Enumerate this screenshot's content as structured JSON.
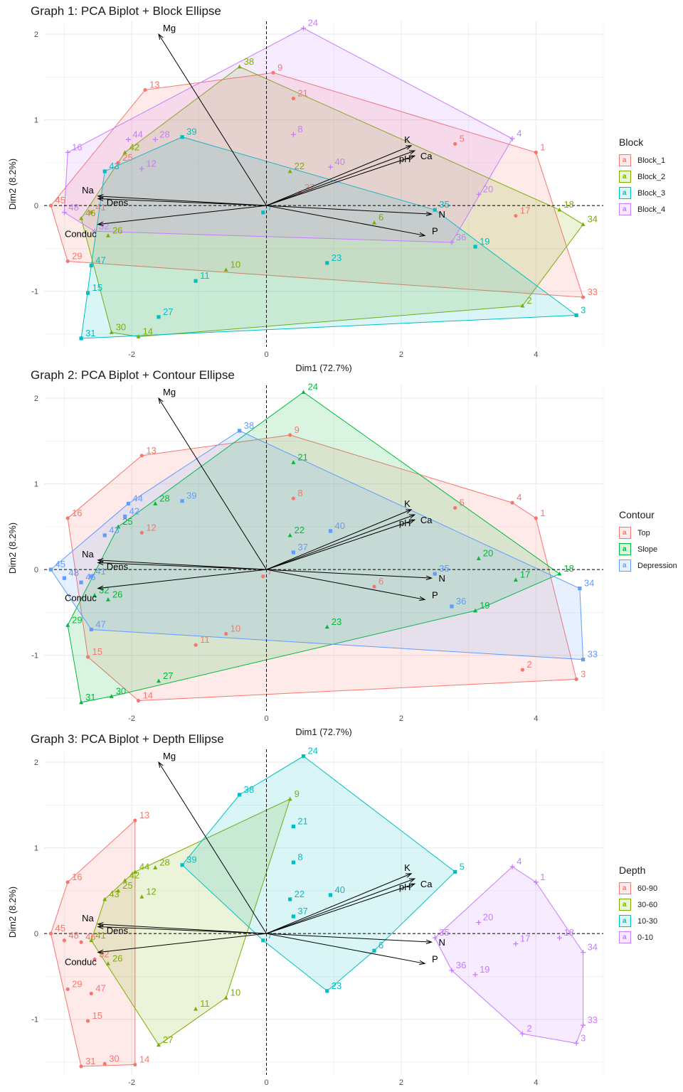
{
  "chart_data": [
    {
      "type": "scatter",
      "title": "Graph 1: PCA Biplot + Block Ellipse",
      "xlabel": "Dim1 (72.7%)",
      "ylabel": "Dim2 (8.2%)",
      "xlim": [
        -3.3,
        5.0
      ],
      "ylim": [
        -1.65,
        2.15
      ],
      "x_ticks": [
        "-2",
        "0",
        "2",
        "4"
      ],
      "y_ticks": [
        "-1",
        "0",
        "1",
        "2"
      ],
      "legend_title": "Block",
      "legend_position": "right",
      "series": [
        {
          "name": "Block_1",
          "color": "#F8766D",
          "glyph": "a",
          "points": [
            {
              "label": "1",
              "x": 4.0,
              "y": 0.62
            },
            {
              "label": "5",
              "x": 2.8,
              "y": 0.72
            },
            {
              "label": "9",
              "x": 0.1,
              "y": 1.55
            },
            {
              "label": "13",
              "x": -1.8,
              "y": 1.35
            },
            {
              "label": "17",
              "x": 3.7,
              "y": -0.12
            },
            {
              "label": "21",
              "x": 0.4,
              "y": 1.25
            },
            {
              "label": "25",
              "x": -2.2,
              "y": 0.5
            },
            {
              "label": "29",
              "x": -2.95,
              "y": -0.65
            },
            {
              "label": "33",
              "x": 4.7,
              "y": -1.07
            },
            {
              "label": "37",
              "x": 0.5,
              "y": 0.15
            },
            {
              "label": "41",
              "x": -2.6,
              "y": -0.08
            },
            {
              "label": "45",
              "x": -3.2,
              "y": 0.0
            }
          ]
        },
        {
          "name": "Block_2",
          "color": "#7CAE00",
          "glyph": "a",
          "points": [
            {
              "label": "2",
              "x": 3.8,
              "y": -1.17
            },
            {
              "label": "6",
              "x": 1.6,
              "y": -0.2
            },
            {
              "label": "10",
              "x": -0.6,
              "y": -0.75
            },
            {
              "label": "14",
              "x": -1.9,
              "y": -1.53
            },
            {
              "label": "18",
              "x": 4.35,
              "y": -0.05
            },
            {
              "label": "22",
              "x": 0.35,
              "y": 0.4
            },
            {
              "label": "26",
              "x": -2.35,
              "y": -0.35
            },
            {
              "label": "30",
              "x": -2.3,
              "y": -1.48
            },
            {
              "label": "34",
              "x": 4.7,
              "y": -0.22
            },
            {
              "label": "38",
              "x": -0.4,
              "y": 1.62
            },
            {
              "label": "42",
              "x": -2.1,
              "y": 0.62
            },
            {
              "label": "46",
              "x": -2.75,
              "y": -0.15
            }
          ]
        },
        {
          "name": "Block_3",
          "color": "#00BFC4",
          "glyph": "a",
          "points": [
            {
              "label": "3",
              "x": 4.6,
              "y": -1.28
            },
            {
              "label": "7",
              "x": -0.05,
              "y": -0.08
            },
            {
              "label": "11",
              "x": -1.05,
              "y": -0.88
            },
            {
              "label": "15",
              "x": -2.65,
              "y": -1.02
            },
            {
              "label": "19",
              "x": 3.1,
              "y": -0.48
            },
            {
              "label": "23",
              "x": 0.9,
              "y": -0.67
            },
            {
              "label": "27",
              "x": -1.6,
              "y": -1.3
            },
            {
              "label": "31",
              "x": -2.75,
              "y": -1.55
            },
            {
              "label": "35",
              "x": 2.5,
              "y": -0.05
            },
            {
              "label": "39",
              "x": -1.25,
              "y": 0.8
            },
            {
              "label": "43",
              "x": -2.4,
              "y": 0.4
            },
            {
              "label": "47",
              "x": -2.6,
              "y": -0.7
            }
          ]
        },
        {
          "name": "Block_4",
          "color": "#C77CFF",
          "glyph": "a",
          "points": [
            {
              "label": "4",
              "x": 3.65,
              "y": 0.78
            },
            {
              "label": "8",
              "x": 0.4,
              "y": 0.83
            },
            {
              "label": "12",
              "x": -1.85,
              "y": 0.43
            },
            {
              "label": "16",
              "x": -2.95,
              "y": 0.62
            },
            {
              "label": "20",
              "x": 3.15,
              "y": 0.13
            },
            {
              "label": "24",
              "x": 0.55,
              "y": 2.07
            },
            {
              "label": "28",
              "x": -1.65,
              "y": 0.77
            },
            {
              "label": "32",
              "x": -2.55,
              "y": -0.3
            },
            {
              "label": "36",
              "x": 2.75,
              "y": -0.43
            },
            {
              "label": "40",
              "x": 0.95,
              "y": 0.45
            },
            {
              "label": "44",
              "x": -2.05,
              "y": 0.77
            },
            {
              "label": "48",
              "x": -3.0,
              "y": -0.08
            }
          ]
        }
      ]
    },
    {
      "type": "scatter",
      "title": "Graph 2: PCA Biplot + Contour Ellipse",
      "xlabel": "Dim1 (72.7%)",
      "ylabel": "Dim2 (8.2%)",
      "xlim": [
        -3.3,
        5.0
      ],
      "ylim": [
        -1.65,
        2.15
      ],
      "x_ticks": [
        "-2",
        "0",
        "2",
        "4"
      ],
      "y_ticks": [
        "-1",
        "0",
        "1",
        "2"
      ],
      "legend_title": "Contour",
      "legend_position": "right",
      "series": [
        {
          "name": "Top",
          "color": "#F8766D",
          "glyph": "a",
          "points": [
            {
              "label": "1",
              "x": 4.0,
              "y": 0.6
            },
            {
              "label": "2",
              "x": 3.8,
              "y": -1.17
            },
            {
              "label": "3",
              "x": 4.6,
              "y": -1.28
            },
            {
              "label": "4",
              "x": 3.65,
              "y": 0.78
            },
            {
              "label": "5",
              "x": 2.8,
              "y": 0.72
            },
            {
              "label": "6",
              "x": 1.6,
              "y": -0.2
            },
            {
              "label": "7",
              "x": -0.05,
              "y": -0.08
            },
            {
              "label": "8",
              "x": 0.4,
              "y": 0.83
            },
            {
              "label": "9",
              "x": 0.35,
              "y": 1.57
            },
            {
              "label": "10",
              "x": -0.6,
              "y": -0.75
            },
            {
              "label": "11",
              "x": -1.05,
              "y": -0.88
            },
            {
              "label": "12",
              "x": -1.85,
              "y": 0.43
            },
            {
              "label": "13",
              "x": -1.85,
              "y": 1.33
            },
            {
              "label": "14",
              "x": -1.9,
              "y": -1.53
            },
            {
              "label": "15",
              "x": -2.65,
              "y": -1.02
            },
            {
              "label": "16",
              "x": -2.95,
              "y": 0.6
            }
          ]
        },
        {
          "name": "Slope",
          "color": "#00BA38",
          "glyph": "a",
          "points": [
            {
              "label": "17",
              "x": 3.7,
              "y": -0.12
            },
            {
              "label": "18",
              "x": 4.35,
              "y": -0.05
            },
            {
              "label": "19",
              "x": 3.1,
              "y": -0.48
            },
            {
              "label": "20",
              "x": 3.15,
              "y": 0.13
            },
            {
              "label": "21",
              "x": 0.4,
              "y": 1.25
            },
            {
              "label": "22",
              "x": 0.35,
              "y": 0.4
            },
            {
              "label": "23",
              "x": 0.9,
              "y": -0.67
            },
            {
              "label": "24",
              "x": 0.55,
              "y": 2.07
            },
            {
              "label": "25",
              "x": -2.2,
              "y": 0.5
            },
            {
              "label": "26",
              "x": -2.35,
              "y": -0.35
            },
            {
              "label": "27",
              "x": -1.6,
              "y": -1.3
            },
            {
              "label": "28",
              "x": -1.65,
              "y": 0.77
            },
            {
              "label": "29",
              "x": -2.95,
              "y": -0.65
            },
            {
              "label": "30",
              "x": -2.3,
              "y": -1.48
            },
            {
              "label": "31",
              "x": -2.75,
              "y": -1.55
            },
            {
              "label": "32",
              "x": -2.55,
              "y": -0.3
            }
          ]
        },
        {
          "name": "Depression",
          "color": "#619CFF",
          "glyph": "a",
          "points": [
            {
              "label": "33",
              "x": 4.7,
              "y": -1.05
            },
            {
              "label": "34",
              "x": 4.65,
              "y": -0.22
            },
            {
              "label": "35",
              "x": 2.5,
              "y": -0.05
            },
            {
              "label": "36",
              "x": 2.75,
              "y": -0.43
            },
            {
              "label": "37",
              "x": 0.4,
              "y": 0.2
            },
            {
              "label": "38",
              "x": -0.4,
              "y": 1.62
            },
            {
              "label": "39",
              "x": -1.25,
              "y": 0.8
            },
            {
              "label": "40",
              "x": 0.95,
              "y": 0.45
            },
            {
              "label": "41",
              "x": -2.6,
              "y": -0.08
            },
            {
              "label": "42",
              "x": -2.1,
              "y": 0.62
            },
            {
              "label": "43",
              "x": -2.4,
              "y": 0.4
            },
            {
              "label": "44",
              "x": -2.05,
              "y": 0.77
            },
            {
              "label": "45",
              "x": -3.2,
              "y": 0.0
            },
            {
              "label": "46",
              "x": -2.75,
              "y": -0.15
            },
            {
              "label": "47",
              "x": -2.6,
              "y": -0.7
            },
            {
              "label": "48",
              "x": -3.0,
              "y": -0.1
            }
          ]
        }
      ]
    },
    {
      "type": "scatter",
      "title": "Graph 3: PCA Biplot + Depth Ellipse",
      "xlabel": "Dim1 (72.7%)",
      "ylabel": "Dim2 (8.2%)",
      "xlim": [
        -3.3,
        5.0
      ],
      "ylim": [
        -1.65,
        2.15
      ],
      "x_ticks": [
        "-2",
        "0",
        "2",
        "4"
      ],
      "y_ticks": [
        "-1",
        "0",
        "1",
        "2"
      ],
      "legend_title": "Depth",
      "legend_position": "right",
      "series": [
        {
          "name": "60-90",
          "color": "#F8766D",
          "glyph": "a",
          "points": [
            {
              "label": "13",
              "x": -1.95,
              "y": 1.32
            },
            {
              "label": "16",
              "x": -2.95,
              "y": 0.6
            },
            {
              "label": "29",
              "x": -2.95,
              "y": -0.65
            },
            {
              "label": "30",
              "x": -2.4,
              "y": -1.52
            },
            {
              "label": "31",
              "x": -2.75,
              "y": -1.55
            },
            {
              "label": "14",
              "x": -1.95,
              "y": -1.53
            },
            {
              "label": "15",
              "x": -2.65,
              "y": -1.02
            },
            {
              "label": "47",
              "x": -2.6,
              "y": -0.7
            },
            {
              "label": "45",
              "x": -3.2,
              "y": 0.0
            },
            {
              "label": "48",
              "x": -3.0,
              "y": -0.08
            },
            {
              "label": "46",
              "x": -2.75,
              "y": -0.1
            },
            {
              "label": "32",
              "x": -2.55,
              "y": -0.3
            }
          ]
        },
        {
          "name": "30-60",
          "color": "#7CAE00",
          "glyph": "a",
          "points": [
            {
              "label": "9",
              "x": 0.35,
              "y": 1.57
            },
            {
              "label": "42",
              "x": -2.1,
              "y": 0.62
            },
            {
              "label": "44",
              "x": -1.95,
              "y": 0.72
            },
            {
              "label": "28",
              "x": -1.65,
              "y": 0.77
            },
            {
              "label": "43",
              "x": -2.4,
              "y": 0.4
            },
            {
              "label": "25",
              "x": -2.2,
              "y": 0.5
            },
            {
              "label": "12",
              "x": -1.85,
              "y": 0.43
            },
            {
              "label": "41",
              "x": -2.6,
              "y": -0.08
            },
            {
              "label": "26",
              "x": -2.35,
              "y": -0.35
            },
            {
              "label": "11",
              "x": -1.05,
              "y": -0.88
            },
            {
              "label": "10",
              "x": -0.6,
              "y": -0.75
            },
            {
              "label": "27",
              "x": -1.6,
              "y": -1.3
            }
          ]
        },
        {
          "name": "10-30",
          "color": "#00BFC4",
          "glyph": "a",
          "points": [
            {
              "label": "24",
              "x": 0.55,
              "y": 2.07
            },
            {
              "label": "38",
              "x": -0.4,
              "y": 1.62
            },
            {
              "label": "21",
              "x": 0.4,
              "y": 1.25
            },
            {
              "label": "8",
              "x": 0.4,
              "y": 0.83
            },
            {
              "label": "39",
              "x": -1.25,
              "y": 0.8
            },
            {
              "label": "5",
              "x": 2.8,
              "y": 0.72
            },
            {
              "label": "22",
              "x": 0.35,
              "y": 0.4
            },
            {
              "label": "40",
              "x": 0.95,
              "y": 0.45
            },
            {
              "label": "37",
              "x": 0.4,
              "y": 0.2
            },
            {
              "label": "7",
              "x": -0.05,
              "y": -0.08
            },
            {
              "label": "6",
              "x": 1.6,
              "y": -0.2
            },
            {
              "label": "23",
              "x": 0.9,
              "y": -0.67
            }
          ]
        },
        {
          "name": "0-10",
          "color": "#C77CFF",
          "glyph": "a",
          "points": [
            {
              "label": "4",
              "x": 3.65,
              "y": 0.78
            },
            {
              "label": "1",
              "x": 4.0,
              "y": 0.6
            },
            {
              "label": "20",
              "x": 3.15,
              "y": 0.13
            },
            {
              "label": "17",
              "x": 3.7,
              "y": -0.12
            },
            {
              "label": "18",
              "x": 4.35,
              "y": -0.05
            },
            {
              "label": "34",
              "x": 4.7,
              "y": -0.22
            },
            {
              "label": "35",
              "x": 2.5,
              "y": -0.05
            },
            {
              "label": "36",
              "x": 2.75,
              "y": -0.43
            },
            {
              "label": "19",
              "x": 3.1,
              "y": -0.48
            },
            {
              "label": "2",
              "x": 3.8,
              "y": -1.17
            },
            {
              "label": "33",
              "x": 4.7,
              "y": -1.07
            },
            {
              "label": "3",
              "x": 4.6,
              "y": -1.28
            }
          ]
        }
      ]
    }
  ],
  "variables": [
    {
      "name": "Mg",
      "x": -1.6,
      "y": 2.0
    },
    {
      "name": "K",
      "x": 2.15,
      "y": 0.7
    },
    {
      "name": "pH",
      "x": 2.2,
      "y": 0.58
    },
    {
      "name": "Ca",
      "x": 2.2,
      "y": 0.64
    },
    {
      "name": "N",
      "x": 2.45,
      "y": -0.1
    },
    {
      "name": "P",
      "x": 2.35,
      "y": -0.35
    },
    {
      "name": "Na",
      "x": -2.5,
      "y": 0.11
    },
    {
      "name": "Dens",
      "x": -2.5,
      "y": 0.08
    },
    {
      "name": "Conduc",
      "x": -2.5,
      "y": -0.22
    }
  ]
}
